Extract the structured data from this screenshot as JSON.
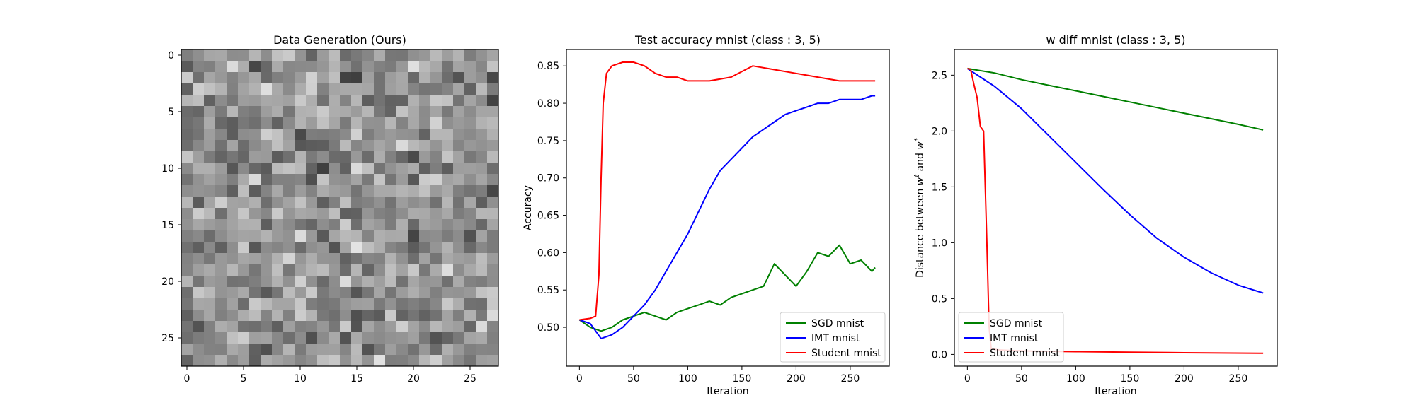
{
  "chart_data": [
    {
      "type": "heatmap",
      "title": "Data Generation (Ours)",
      "xlabel": "",
      "ylabel": "",
      "grid_shape": [
        28,
        28
      ],
      "colormap": "gray",
      "value_range": [
        0,
        1
      ],
      "x_ticks": [
        "0",
        "5",
        "10",
        "15",
        "20",
        "25"
      ],
      "y_ticks": [
        "0",
        "5",
        "10",
        "15",
        "20",
        "25"
      ],
      "notes_seed": 7
    },
    {
      "type": "line",
      "title": "Test accuracy mnist (class : 3, 5)",
      "xlabel": "Iteration",
      "ylabel": "Accuracy",
      "xlim": [
        -12,
        286
      ],
      "ylim": [
        0.448,
        0.872
      ],
      "x_ticks": [
        "0",
        "50",
        "100",
        "150",
        "200",
        "250"
      ],
      "y_ticks": [
        "0.50",
        "0.55",
        "0.60",
        "0.65",
        "0.70",
        "0.75",
        "0.80",
        "0.85"
      ],
      "legend_position": "lower-right",
      "series": [
        {
          "name": "SGD mnist",
          "color": "#008000",
          "x": [
            0,
            10,
            20,
            30,
            40,
            50,
            60,
            70,
            80,
            90,
            100,
            110,
            120,
            130,
            140,
            150,
            160,
            170,
            180,
            190,
            200,
            210,
            220,
            230,
            240,
            250,
            260,
            270,
            273
          ],
          "y": [
            0.51,
            0.5,
            0.495,
            0.5,
            0.51,
            0.515,
            0.52,
            0.515,
            0.51,
            0.52,
            0.525,
            0.53,
            0.535,
            0.53,
            0.54,
            0.545,
            0.55,
            0.555,
            0.585,
            0.57,
            0.555,
            0.575,
            0.6,
            0.595,
            0.61,
            0.585,
            0.59,
            0.575,
            0.58
          ]
        },
        {
          "name": "IMT mnist",
          "color": "#0000ff",
          "x": [
            0,
            10,
            20,
            30,
            40,
            50,
            60,
            70,
            80,
            90,
            100,
            110,
            120,
            130,
            140,
            150,
            160,
            170,
            180,
            190,
            200,
            210,
            220,
            230,
            240,
            250,
            260,
            270,
            273
          ],
          "y": [
            0.51,
            0.505,
            0.485,
            0.49,
            0.5,
            0.515,
            0.53,
            0.55,
            0.575,
            0.6,
            0.625,
            0.655,
            0.685,
            0.71,
            0.725,
            0.74,
            0.755,
            0.765,
            0.775,
            0.785,
            0.79,
            0.795,
            0.8,
            0.8,
            0.805,
            0.805,
            0.805,
            0.81,
            0.81
          ]
        },
        {
          "name": "Student mnist",
          "color": "#ff0000",
          "x": [
            0,
            10,
            15,
            18,
            20,
            22,
            25,
            30,
            40,
            50,
            60,
            70,
            80,
            90,
            100,
            120,
            140,
            160,
            180,
            200,
            220,
            240,
            260,
            273
          ],
          "y": [
            0.51,
            0.512,
            0.515,
            0.57,
            0.7,
            0.8,
            0.84,
            0.85,
            0.855,
            0.855,
            0.85,
            0.84,
            0.835,
            0.835,
            0.83,
            0.83,
            0.835,
            0.85,
            0.845,
            0.84,
            0.835,
            0.83,
            0.83,
            0.83
          ]
        }
      ]
    },
    {
      "type": "line",
      "title": "w diff mnist (class : 3, 5)",
      "xlabel": "Iteration",
      "ylabel": "Distance between w^t and w^*",
      "xlim": [
        -12,
        286
      ],
      "ylim": [
        -0.105,
        2.73
      ],
      "x_ticks": [
        "0",
        "50",
        "100",
        "150",
        "200",
        "250"
      ],
      "y_ticks": [
        "0.0",
        "0.5",
        "1.0",
        "1.5",
        "2.0",
        "2.5"
      ],
      "legend_position": "lower-left",
      "series": [
        {
          "name": "SGD mnist",
          "color": "#008000",
          "x": [
            0,
            25,
            50,
            75,
            100,
            125,
            150,
            175,
            200,
            225,
            250,
            273
          ],
          "y": [
            2.56,
            2.52,
            2.46,
            2.41,
            2.36,
            2.31,
            2.26,
            2.21,
            2.16,
            2.11,
            2.06,
            2.01
          ]
        },
        {
          "name": "IMT mnist",
          "color": "#0000ff",
          "x": [
            0,
            25,
            50,
            75,
            100,
            125,
            150,
            175,
            200,
            225,
            250,
            273
          ],
          "y": [
            2.56,
            2.4,
            2.2,
            1.96,
            1.72,
            1.48,
            1.25,
            1.04,
            0.87,
            0.73,
            0.62,
            0.55
          ]
        },
        {
          "name": "Student mnist",
          "color": "#ff0000",
          "x": [
            0,
            3,
            6,
            9,
            12,
            15,
            18,
            20,
            22,
            30,
            40,
            60,
            100,
            150,
            200,
            273
          ],
          "y": [
            2.56,
            2.55,
            2.42,
            2.3,
            2.04,
            2.0,
            1.0,
            0.25,
            0.05,
            0.04,
            0.035,
            0.03,
            0.025,
            0.02,
            0.015,
            0.01
          ]
        }
      ]
    }
  ]
}
